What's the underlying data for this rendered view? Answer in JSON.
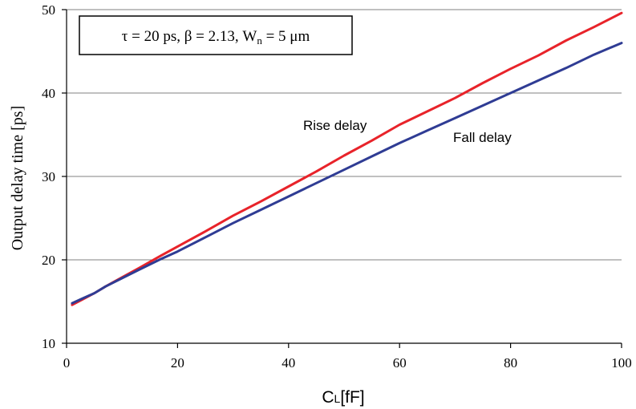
{
  "chart_data": {
    "type": "line",
    "title": "",
    "xlabel_main": "C",
    "xlabel_sub": "L",
    "xlabel_unit": "[fF]",
    "ylabel": "Output delay time [ps]",
    "xlim": [
      0,
      100
    ],
    "ylim": [
      10,
      50
    ],
    "x_ticks": [
      0,
      20,
      40,
      60,
      80,
      100
    ],
    "y_ticks": [
      10,
      20,
      30,
      40,
      50
    ],
    "x_tick_labels": [
      "0",
      "20",
      "40",
      "60",
      "80",
      "100"
    ],
    "y_tick_labels": [
      "10",
      "20",
      "30",
      "40",
      "50"
    ],
    "grid": "horizontal",
    "annotation": {
      "tau": "τ = 20 ps, ",
      "beta": "β = 2.13, ",
      "wn_main": "W",
      "wn_sub": "n",
      "wn_rest": " = 5 μm"
    },
    "series": [
      {
        "name": "Rise delay",
        "color": "#e8232a",
        "x": [
          1,
          3,
          5,
          7,
          10,
          13,
          17,
          20,
          25,
          30,
          35,
          40,
          45,
          50,
          55,
          60,
          65,
          70,
          75,
          80,
          85,
          90,
          95,
          100
        ],
        "y": [
          14.6,
          15.3,
          16.0,
          16.8,
          17.9,
          19.0,
          20.5,
          21.6,
          23.4,
          25.3,
          27.0,
          28.8,
          30.6,
          32.5,
          34.3,
          36.2,
          37.8,
          39.4,
          41.2,
          42.9,
          44.5,
          46.3,
          47.9,
          49.6
        ]
      },
      {
        "name": "Fall delay",
        "color": "#2f3c94",
        "x": [
          1,
          3,
          5,
          7,
          10,
          13,
          17,
          20,
          25,
          30,
          35,
          40,
          45,
          50,
          55,
          60,
          65,
          70,
          75,
          80,
          85,
          90,
          95,
          100
        ],
        "y": [
          14.8,
          15.4,
          16.0,
          16.8,
          17.8,
          18.8,
          20.1,
          21.0,
          22.7,
          24.4,
          26.0,
          27.6,
          29.2,
          30.8,
          32.4,
          34.0,
          35.5,
          37.0,
          38.5,
          40.0,
          41.5,
          43.0,
          44.6,
          46.0
        ]
      }
    ]
  }
}
